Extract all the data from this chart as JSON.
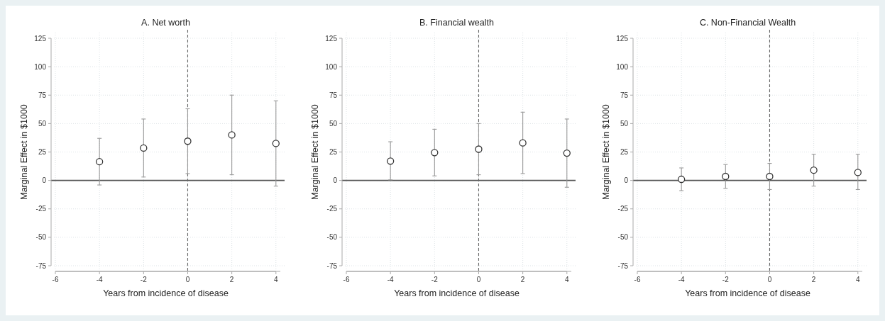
{
  "chart_data": [
    {
      "type": "scatter",
      "title": "A. Net worth",
      "xlabel": "Years from incidence of disease",
      "ylabel": "Marginal Effect in $1000",
      "x": [
        -4,
        -2,
        0,
        2,
        4
      ],
      "series": [
        {
          "color": "#333333",
          "values": [
            16.5,
            28.5,
            34.5,
            40,
            32.5
          ],
          "errors": [
            [
              -4,
              37
            ],
            [
              3,
              54
            ],
            [
              6,
              63
            ],
            [
              5,
              75
            ],
            [
              -5,
              70
            ]
          ]
        }
      ],
      "xlim": [
        -6,
        4.2
      ],
      "xticks": [
        -6,
        -4,
        -2,
        0,
        2,
        4
      ],
      "ylim": [
        -75,
        125
      ],
      "yticks": [
        -75,
        -50,
        -25,
        0,
        25,
        50,
        75,
        100,
        125
      ],
      "grid": true,
      "marker": "circle",
      "ref_lines": [
        {
          "axis": "y",
          "value": 0,
          "color": "#555555",
          "line_style": "solid"
        },
        {
          "axis": "x",
          "value": 0,
          "color": "#666666",
          "line_style": "dashed"
        }
      ]
    },
    {
      "type": "scatter",
      "title": "B. Financial wealth",
      "xlabel": "Years from incidence of disease",
      "ylabel": "Marginal Effect in $1000",
      "x": [
        -4,
        -2,
        0,
        2,
        4
      ],
      "series": [
        {
          "color": "#333333",
          "values": [
            17,
            24.5,
            27.5,
            33,
            24
          ],
          "errors": [
            [
              0.5,
              34
            ],
            [
              4,
              45
            ],
            [
              5,
              50
            ],
            [
              6,
              60
            ],
            [
              -6,
              54
            ]
          ]
        }
      ],
      "xlim": [
        -6,
        4.2
      ],
      "xticks": [
        -6,
        -4,
        -2,
        0,
        2,
        4
      ],
      "ylim": [
        -75,
        125
      ],
      "yticks": [
        -75,
        -50,
        -25,
        0,
        25,
        50,
        75,
        100,
        125
      ],
      "grid": true,
      "marker": "circle",
      "ref_lines": [
        {
          "axis": "y",
          "value": 0,
          "color": "#555555",
          "line_style": "solid"
        },
        {
          "axis": "x",
          "value": 0,
          "color": "#666666",
          "line_style": "dashed"
        }
      ]
    },
    {
      "type": "scatter",
      "title": "C. Non-Financial Wealth",
      "xlabel": "Years from incidence of disease",
      "ylabel": "Marginal Effect in $1000",
      "x": [
        -4,
        -2,
        0,
        2,
        4
      ],
      "series": [
        {
          "color": "#333333",
          "values": [
            1,
            3.5,
            3.5,
            9,
            7
          ],
          "errors": [
            [
              -9,
              11
            ],
            [
              -7,
              14
            ],
            [
              -8,
              15
            ],
            [
              -5,
              23
            ],
            [
              -8,
              23
            ]
          ]
        }
      ],
      "xlim": [
        -6,
        4.2
      ],
      "xticks": [
        -6,
        -4,
        -2,
        0,
        2,
        4
      ],
      "ylim": [
        -75,
        125
      ],
      "yticks": [
        -75,
        -50,
        -25,
        0,
        25,
        50,
        75,
        100,
        125
      ],
      "grid": true,
      "marker": "circle",
      "ref_lines": [
        {
          "axis": "y",
          "value": 0,
          "color": "#555555",
          "line_style": "solid"
        },
        {
          "axis": "x",
          "value": 0,
          "color": "#666666",
          "line_style": "dashed"
        }
      ]
    }
  ]
}
